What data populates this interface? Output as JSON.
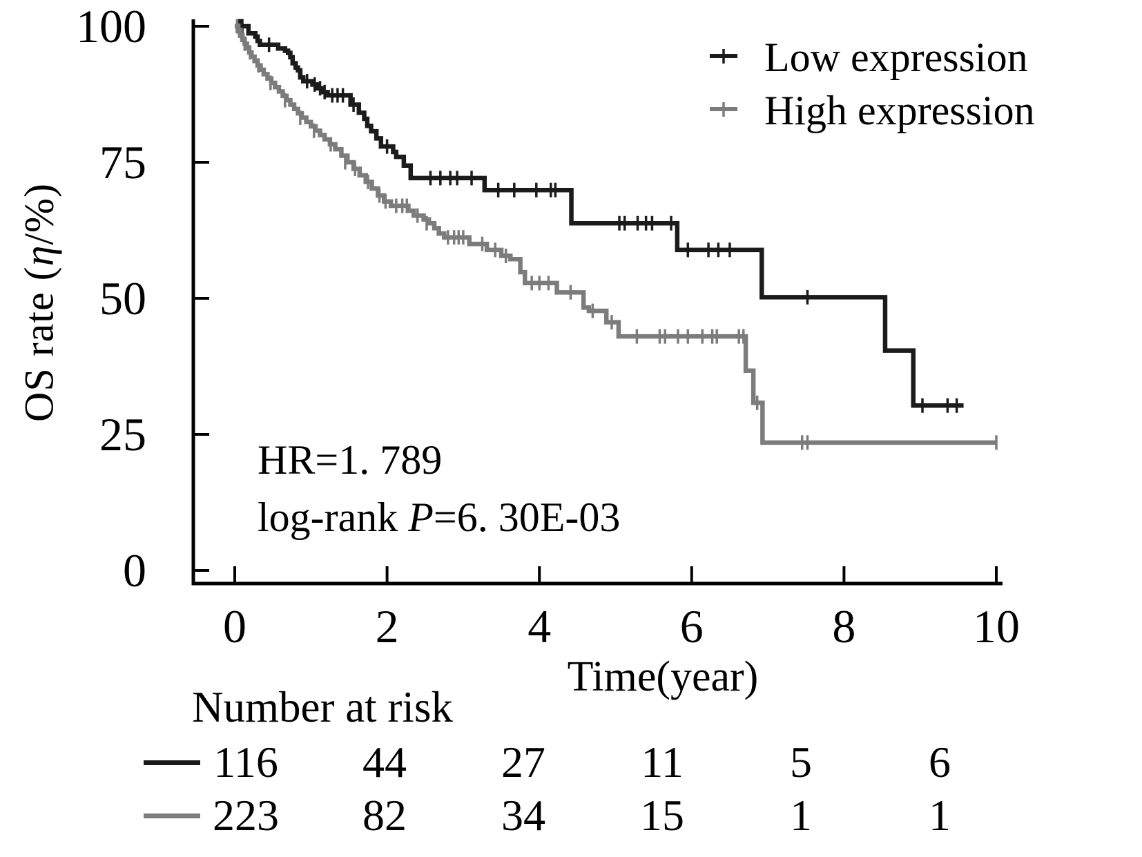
{
  "figure": {
    "background": "#ffffff"
  },
  "y_axis": {
    "title_prefix": "OS rate (",
    "title_eta": "η",
    "title_suffix": "/%)",
    "ticks": [
      100,
      75,
      50,
      25,
      0
    ]
  },
  "x_axis": {
    "title": "Time(year)",
    "ticks": [
      0,
      2,
      4,
      6,
      8,
      10
    ]
  },
  "legend": {
    "items": [
      {
        "label": "Low expression",
        "color": "#1b1b1b"
      },
      {
        "label": "High expression",
        "color": "#7c7c7c"
      }
    ]
  },
  "annotation": {
    "hr": "HR=1. 789",
    "logrank_prefix": "log-rank ",
    "logrank_p": "P",
    "logrank_suffix": "=6. 30E-03"
  },
  "risk_table": {
    "header": "Number at risk",
    "rows": [
      {
        "series": "Low expression",
        "color": "#1b1b1b",
        "values": [
          116,
          44,
          27,
          11,
          5,
          6
        ]
      },
      {
        "series": "High expression",
        "color": "#7c7c7c",
        "values": [
          223,
          82,
          34,
          15,
          1,
          1
        ]
      }
    ]
  },
  "chart_data": {
    "type": "line",
    "subtype": "kaplan-meier-step",
    "title": "",
    "xlabel": "Time(year)",
    "ylabel": "OS rate (η/%)",
    "xlim": [
      0,
      10
    ],
    "ylim": [
      0,
      100
    ],
    "x_ticks": [
      0,
      2,
      4,
      6,
      8,
      10
    ],
    "y_ticks": [
      0,
      25,
      50,
      75,
      100
    ],
    "grid": false,
    "legend_position": "top-right",
    "annotations": [
      "HR=1. 789",
      "log-rank P=6. 30E-03"
    ],
    "series": [
      {
        "name": "Low expression",
        "color": "#1b1b1b",
        "points": [
          [
            0,
            100
          ],
          [
            0.18,
            98.7
          ],
          [
            0.27,
            98.1
          ],
          [
            0.3,
            97.3
          ],
          [
            0.33,
            96.6
          ],
          [
            0.57,
            95.9
          ],
          [
            0.66,
            95.5
          ],
          [
            0.7,
            95.1
          ],
          [
            0.73,
            94.3
          ],
          [
            0.76,
            93.2
          ],
          [
            0.8,
            92.4
          ],
          [
            0.83,
            91.9
          ],
          [
            0.86,
            90.6
          ],
          [
            0.9,
            89.9
          ],
          [
            1.02,
            89.3
          ],
          [
            1.08,
            88.6
          ],
          [
            1.15,
            87.9
          ],
          [
            1.22,
            87.3
          ],
          [
            1.52,
            85.6
          ],
          [
            1.63,
            84.1
          ],
          [
            1.7,
            83.0
          ],
          [
            1.74,
            81.7
          ],
          [
            1.79,
            80.7
          ],
          [
            1.86,
            79.4
          ],
          [
            1.92,
            77.9
          ],
          [
            2.08,
            76.9
          ],
          [
            2.12,
            76.0
          ],
          [
            2.22,
            74.4
          ],
          [
            2.31,
            72.1
          ],
          [
            3.28,
            69.9
          ],
          [
            4.42,
            63.8
          ],
          [
            5.81,
            58.9
          ],
          [
            6.92,
            50.2
          ],
          [
            8.54,
            40.4
          ],
          [
            8.91,
            30.3
          ],
          [
            9.57,
            30.3
          ]
        ],
        "censors": [
          [
            0.04,
            100
          ],
          [
            0.07,
            100
          ],
          [
            0.1,
            100
          ],
          [
            0.45,
            96.6
          ],
          [
            0.95,
            89.9
          ],
          [
            1.05,
            89.3
          ],
          [
            1.12,
            88.6
          ],
          [
            1.18,
            87.9
          ],
          [
            1.28,
            87.3
          ],
          [
            1.35,
            87.3
          ],
          [
            1.42,
            87.3
          ],
          [
            1.56,
            85.6
          ],
          [
            2.0,
            77.9
          ],
          [
            2.57,
            72.1
          ],
          [
            2.7,
            72.1
          ],
          [
            2.83,
            72.1
          ],
          [
            2.92,
            72.1
          ],
          [
            3.11,
            72.1
          ],
          [
            3.46,
            69.9
          ],
          [
            3.67,
            69.9
          ],
          [
            3.96,
            69.9
          ],
          [
            4.15,
            69.9
          ],
          [
            4.21,
            69.9
          ],
          [
            5.05,
            63.8
          ],
          [
            5.12,
            63.8
          ],
          [
            5.29,
            63.8
          ],
          [
            5.4,
            63.8
          ],
          [
            5.48,
            63.8
          ],
          [
            5.73,
            63.8
          ],
          [
            5.95,
            58.9
          ],
          [
            6.22,
            58.9
          ],
          [
            6.35,
            58.9
          ],
          [
            6.5,
            58.9
          ],
          [
            7.52,
            50.2
          ],
          [
            9.03,
            30.3
          ],
          [
            9.36,
            30.3
          ],
          [
            9.48,
            30.3
          ]
        ]
      },
      {
        "name": "High expression",
        "color": "#7c7c7c",
        "points": [
          [
            0,
            100
          ],
          [
            0.04,
            99.2
          ],
          [
            0.07,
            98.4
          ],
          [
            0.1,
            97.6
          ],
          [
            0.13,
            96.8
          ],
          [
            0.16,
            96.0
          ],
          [
            0.19,
            95.2
          ],
          [
            0.22,
            94.4
          ],
          [
            0.26,
            93.6
          ],
          [
            0.3,
            92.8
          ],
          [
            0.34,
            92.0
          ],
          [
            0.38,
            91.2
          ],
          [
            0.43,
            90.4
          ],
          [
            0.48,
            89.6
          ],
          [
            0.53,
            88.8
          ],
          [
            0.58,
            88.0
          ],
          [
            0.63,
            87.2
          ],
          [
            0.68,
            86.4
          ],
          [
            0.73,
            85.6
          ],
          [
            0.78,
            84.8
          ],
          [
            0.83,
            84.0
          ],
          [
            0.88,
            83.2
          ],
          [
            0.94,
            82.4
          ],
          [
            1.0,
            81.6
          ],
          [
            1.06,
            80.8
          ],
          [
            1.12,
            80.0
          ],
          [
            1.18,
            79.2
          ],
          [
            1.25,
            78.3
          ],
          [
            1.32,
            77.4
          ],
          [
            1.4,
            76.2
          ],
          [
            1.48,
            75.0
          ],
          [
            1.56,
            73.8
          ],
          [
            1.64,
            72.6
          ],
          [
            1.72,
            71.4
          ],
          [
            1.8,
            70.2
          ],
          [
            1.88,
            68.9
          ],
          [
            1.96,
            67.8
          ],
          [
            2.05,
            67.0
          ],
          [
            2.28,
            66.1
          ],
          [
            2.35,
            65.2
          ],
          [
            2.48,
            64.5
          ],
          [
            2.55,
            63.8
          ],
          [
            2.62,
            62.9
          ],
          [
            2.68,
            61.9
          ],
          [
            2.75,
            61.2
          ],
          [
            3.08,
            60.0
          ],
          [
            3.31,
            58.9
          ],
          [
            3.5,
            57.8
          ],
          [
            3.62,
            57.2
          ],
          [
            3.75,
            54.8
          ],
          [
            3.81,
            52.8
          ],
          [
            4.23,
            51.1
          ],
          [
            4.58,
            48.3
          ],
          [
            4.65,
            47.7
          ],
          [
            4.88,
            45.6
          ],
          [
            5.04,
            43.0
          ],
          [
            6.71,
            36.7
          ],
          [
            6.81,
            30.8
          ],
          [
            6.93,
            23.5
          ],
          [
            10.0,
            23.5
          ]
        ],
        "censors": [
          [
            0.03,
            100
          ],
          [
            0.06,
            99.2
          ],
          [
            0.09,
            98.4
          ],
          [
            0.13,
            96.8
          ],
          [
            0.2,
            95.2
          ],
          [
            0.31,
            92.8
          ],
          [
            0.47,
            89.6
          ],
          [
            0.66,
            86.4
          ],
          [
            0.86,
            83.2
          ],
          [
            1.04,
            80.8
          ],
          [
            1.26,
            78.3
          ],
          [
            1.45,
            75.0
          ],
          [
            1.58,
            73.8
          ],
          [
            1.75,
            71.4
          ],
          [
            1.9,
            68.9
          ],
          [
            1.98,
            67.8
          ],
          [
            2.12,
            67.0
          ],
          [
            2.2,
            67.0
          ],
          [
            2.26,
            67.0
          ],
          [
            2.4,
            65.2
          ],
          [
            2.52,
            63.8
          ],
          [
            2.8,
            61.2
          ],
          [
            2.88,
            61.2
          ],
          [
            2.94,
            61.2
          ],
          [
            3.0,
            61.2
          ],
          [
            3.25,
            60.0
          ],
          [
            3.42,
            58.9
          ],
          [
            3.56,
            57.8
          ],
          [
            3.9,
            52.8
          ],
          [
            4.0,
            52.8
          ],
          [
            4.12,
            52.8
          ],
          [
            4.41,
            51.1
          ],
          [
            4.7,
            47.7
          ],
          [
            4.95,
            45.6
          ],
          [
            5.28,
            43.0
          ],
          [
            5.58,
            43.0
          ],
          [
            5.65,
            43.0
          ],
          [
            5.82,
            43.0
          ],
          [
            5.95,
            43.0
          ],
          [
            6.14,
            43.0
          ],
          [
            6.27,
            43.0
          ],
          [
            6.33,
            43.0
          ],
          [
            6.62,
            43.0
          ],
          [
            6.68,
            43.0
          ],
          [
            6.86,
            30.8
          ],
          [
            7.45,
            23.5
          ],
          [
            7.52,
            23.5
          ],
          [
            10.0,
            23.5
          ]
        ]
      }
    ]
  }
}
